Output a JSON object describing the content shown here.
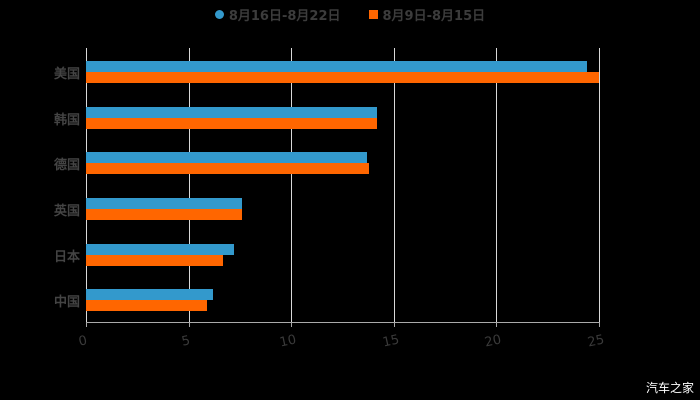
{
  "chart_data": {
    "type": "bar",
    "orientation": "horizontal",
    "title": "",
    "categories": [
      "美国",
      "韩国",
      "德国",
      "英国",
      "日本",
      "中国"
    ],
    "series": [
      {
        "name": "8月16日-8月22日",
        "color": "#3399cc",
        "values": [
          24.4,
          14.2,
          13.7,
          7.6,
          7.2,
          6.2
        ]
      },
      {
        "name": "8月9日-8月15日",
        "color": "#ff6600",
        "values": [
          25.0,
          14.2,
          13.8,
          7.6,
          6.7,
          5.9
        ]
      }
    ],
    "xlabel": "",
    "ylabel": "",
    "xlim": [
      0,
      25
    ],
    "x_ticks": [
      "0",
      "5",
      "10",
      "15",
      "20",
      "25"
    ],
    "grid": true,
    "legend_position": "top"
  },
  "legend": [
    {
      "label": "8月16日-8月22日",
      "color": "#3399cc",
      "shape": "circle"
    },
    {
      "label": "8月9日-8月15日",
      "color": "#ff6600",
      "shape": "square"
    }
  ],
  "watermark": "汽车之家"
}
